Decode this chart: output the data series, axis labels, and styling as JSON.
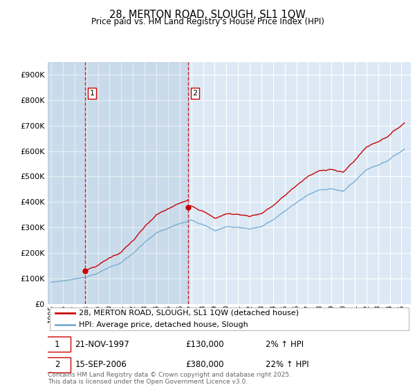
{
  "title": "28, MERTON ROAD, SLOUGH, SL1 1QW",
  "subtitle": "Price paid vs. HM Land Registry's House Price Index (HPI)",
  "ylim": [
    0,
    950000
  ],
  "yticks": [
    0,
    100000,
    200000,
    300000,
    400000,
    500000,
    600000,
    700000,
    800000,
    900000
  ],
  "ytick_labels": [
    "£0",
    "£100K",
    "£200K",
    "£300K",
    "£400K",
    "£500K",
    "£600K",
    "£700K",
    "£800K",
    "£900K"
  ],
  "background_color": "#ffffff",
  "plot_bg_color": "#dce9f5",
  "grid_color": "#ffffff",
  "sale1_date": 1997.89,
  "sale1_price": 130000,
  "sale2_date": 2006.71,
  "sale2_price": 380000,
  "line1_color": "#cc0000",
  "line2_color": "#7aadcf",
  "marker_color": "#cc0000",
  "vline_color": "#cc0000",
  "legend_label1": "28, MERTON ROAD, SLOUGH, SL1 1QW (detached house)",
  "legend_label2": "HPI: Average price, detached house, Slough",
  "footnote": "Contains HM Land Registry data © Crown copyright and database right 2025.\nThis data is licensed under the Open Government Licence v3.0.",
  "hpi_monthly_years": [
    1995.0,
    1995.083,
    1995.167,
    1995.25,
    1995.333,
    1995.417,
    1995.5,
    1995.583,
    1995.667,
    1995.75,
    1995.833,
    1995.917,
    1996.0,
    1996.083,
    1996.167,
    1996.25,
    1996.333,
    1996.417,
    1996.5,
    1996.583,
    1996.667,
    1996.75,
    1996.833,
    1996.917,
    1997.0,
    1997.083,
    1997.167,
    1997.25,
    1997.333,
    1997.417,
    1997.5,
    1997.583,
    1997.667,
    1997.75,
    1997.833,
    1997.917,
    1998.0,
    1998.083,
    1998.167,
    1998.25,
    1998.333,
    1998.417,
    1998.5,
    1998.583,
    1998.667,
    1998.75,
    1998.833,
    1998.917,
    1999.0,
    1999.083,
    1999.167,
    1999.25,
    1999.333,
    1999.417,
    1999.5,
    1999.583,
    1999.667,
    1999.75,
    1999.833,
    1999.917,
    2000.0,
    2000.083,
    2000.167,
    2000.25,
    2000.333,
    2000.417,
    2000.5,
    2000.583,
    2000.667,
    2000.75,
    2000.833,
    2000.917,
    2001.0,
    2001.083,
    2001.167,
    2001.25,
    2001.333,
    2001.417,
    2001.5,
    2001.583,
    2001.667,
    2001.75,
    2001.833,
    2001.917,
    2002.0,
    2002.083,
    2002.167,
    2002.25,
    2002.333,
    2002.417,
    2002.5,
    2002.583,
    2002.667,
    2002.75,
    2002.833,
    2002.917,
    2003.0,
    2003.083,
    2003.167,
    2003.25,
    2003.333,
    2003.417,
    2003.5,
    2003.583,
    2003.667,
    2003.75,
    2003.833,
    2003.917,
    2004.0,
    2004.083,
    2004.167,
    2004.25,
    2004.333,
    2004.417,
    2004.5,
    2004.583,
    2004.667,
    2004.75,
    2004.833,
    2004.917,
    2005.0,
    2005.083,
    2005.167,
    2005.25,
    2005.333,
    2005.417,
    2005.5,
    2005.583,
    2005.667,
    2005.75,
    2005.833,
    2005.917,
    2006.0,
    2006.083,
    2006.167,
    2006.25,
    2006.333,
    2006.417,
    2006.5,
    2006.583,
    2006.667,
    2006.75,
    2006.833,
    2006.917,
    2007.0,
    2007.083,
    2007.167,
    2007.25,
    2007.333,
    2007.417,
    2007.5,
    2007.583,
    2007.667,
    2007.75,
    2007.833,
    2007.917,
    2008.0,
    2008.083,
    2008.167,
    2008.25,
    2008.333,
    2008.417,
    2008.5,
    2008.583,
    2008.667,
    2008.75,
    2008.833,
    2008.917,
    2009.0,
    2009.083,
    2009.167,
    2009.25,
    2009.333,
    2009.417,
    2009.5,
    2009.583,
    2009.667,
    2009.75,
    2009.833,
    2009.917,
    2010.0,
    2010.083,
    2010.167,
    2010.25,
    2010.333,
    2010.417,
    2010.5,
    2010.583,
    2010.667,
    2010.75,
    2010.833,
    2010.917,
    2011.0,
    2011.083,
    2011.167,
    2011.25,
    2011.333,
    2011.417,
    2011.5,
    2011.583,
    2011.667,
    2011.75,
    2011.833,
    2011.917,
    2012.0,
    2012.083,
    2012.167,
    2012.25,
    2012.333,
    2012.417,
    2012.5,
    2012.583,
    2012.667,
    2012.75,
    2012.833,
    2012.917,
    2013.0,
    2013.083,
    2013.167,
    2013.25,
    2013.333,
    2013.417,
    2013.5,
    2013.583,
    2013.667,
    2013.75,
    2013.833,
    2013.917,
    2014.0,
    2014.083,
    2014.167,
    2014.25,
    2014.333,
    2014.417,
    2014.5,
    2014.583,
    2014.667,
    2014.75,
    2014.833,
    2014.917,
    2015.0,
    2015.083,
    2015.167,
    2015.25,
    2015.333,
    2015.417,
    2015.5,
    2015.583,
    2015.667,
    2015.75,
    2015.833,
    2015.917,
    2016.0,
    2016.083,
    2016.167,
    2016.25,
    2016.333,
    2016.417,
    2016.5,
    2016.583,
    2016.667,
    2016.75,
    2016.833,
    2016.917,
    2017.0,
    2017.083,
    2017.167,
    2017.25,
    2017.333,
    2017.417,
    2017.5,
    2017.583,
    2017.667,
    2017.75,
    2017.833,
    2017.917,
    2018.0,
    2018.083,
    2018.167,
    2018.25,
    2018.333,
    2018.417,
    2018.5,
    2018.583,
    2018.667,
    2018.75,
    2018.833,
    2018.917,
    2019.0,
    2019.083,
    2019.167,
    2019.25,
    2019.333,
    2019.417,
    2019.5,
    2019.583,
    2019.667,
    2019.75,
    2019.833,
    2019.917,
    2020.0,
    2020.083,
    2020.167,
    2020.25,
    2020.333,
    2020.417,
    2020.5,
    2020.583,
    2020.667,
    2020.75,
    2020.833,
    2020.917,
    2021.0,
    2021.083,
    2021.167,
    2021.25,
    2021.333,
    2021.417,
    2021.5,
    2021.583,
    2021.667,
    2021.75,
    2021.833,
    2021.917,
    2022.0,
    2022.083,
    2022.167,
    2022.25,
    2022.333,
    2022.417,
    2022.5,
    2022.583,
    2022.667,
    2022.75,
    2022.833,
    2022.917,
    2023.0,
    2023.083,
    2023.167,
    2023.25,
    2023.333,
    2023.417,
    2023.5,
    2023.583,
    2023.667,
    2023.75,
    2023.833,
    2023.917,
    2024.0,
    2024.083,
    2024.167,
    2024.25,
    2024.333,
    2024.417,
    2024.5,
    2024.583,
    2024.667,
    2024.75,
    2024.833,
    2024.917,
    2025.0,
    2025.083,
    2025.167,
    2025.25
  ]
}
